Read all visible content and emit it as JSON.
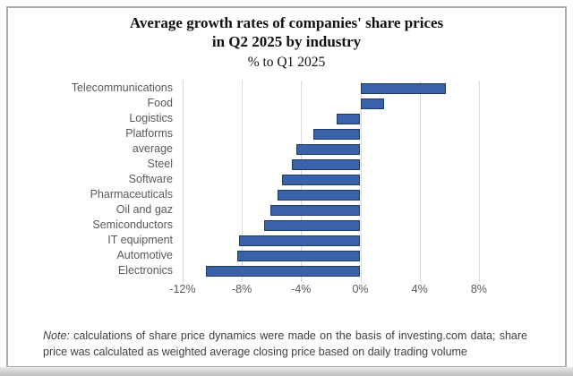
{
  "title": {
    "line1": "Average growth rates of companies' share prices",
    "line2": "in Q2 2025 by industry",
    "subtitle": "% to Q1 2025"
  },
  "note": {
    "prefix": "Note:",
    "body": "calculations of share price dynamics were made on the basis of investing.com data; share price was calculated as weighted average closing price based on daily trading volume"
  },
  "chart_data": {
    "type": "bar",
    "orientation": "horizontal",
    "title": "Average growth rates of companies' share prices in Q2 2025 by industry",
    "subtitle": "% to Q1 2025",
    "categories": [
      "Telecommunications",
      "Food",
      "Logistics",
      "Platforms",
      "average",
      "Steel",
      "Software",
      "Pharmaceuticals",
      "Oil and gaz",
      "Semiconductors",
      "IT equipment",
      "Automotive",
      "Electronics"
    ],
    "values": [
      5.8,
      1.6,
      -1.6,
      -3.2,
      -4.3,
      -4.6,
      -5.3,
      -5.6,
      -6.1,
      -6.5,
      -8.2,
      -8.3,
      -10.4
    ],
    "unit": "%",
    "xticks": [
      -12,
      -8,
      -4,
      0,
      4,
      8
    ],
    "xtick_labels": [
      "-12%",
      "-8%",
      "-4%",
      "0%",
      "4%",
      "8%"
    ],
    "xlim": [
      -12.2,
      13.9
    ],
    "grid": true,
    "legend": false,
    "colors": {
      "bar_fill": "#3a62a8",
      "bar_border": "#203864",
      "gridline": "#d9d9d9",
      "axis_text": "#595959",
      "title_text": "#111111",
      "note_text": "#3f3f3f",
      "frame_border": "#a9a9a9"
    }
  }
}
